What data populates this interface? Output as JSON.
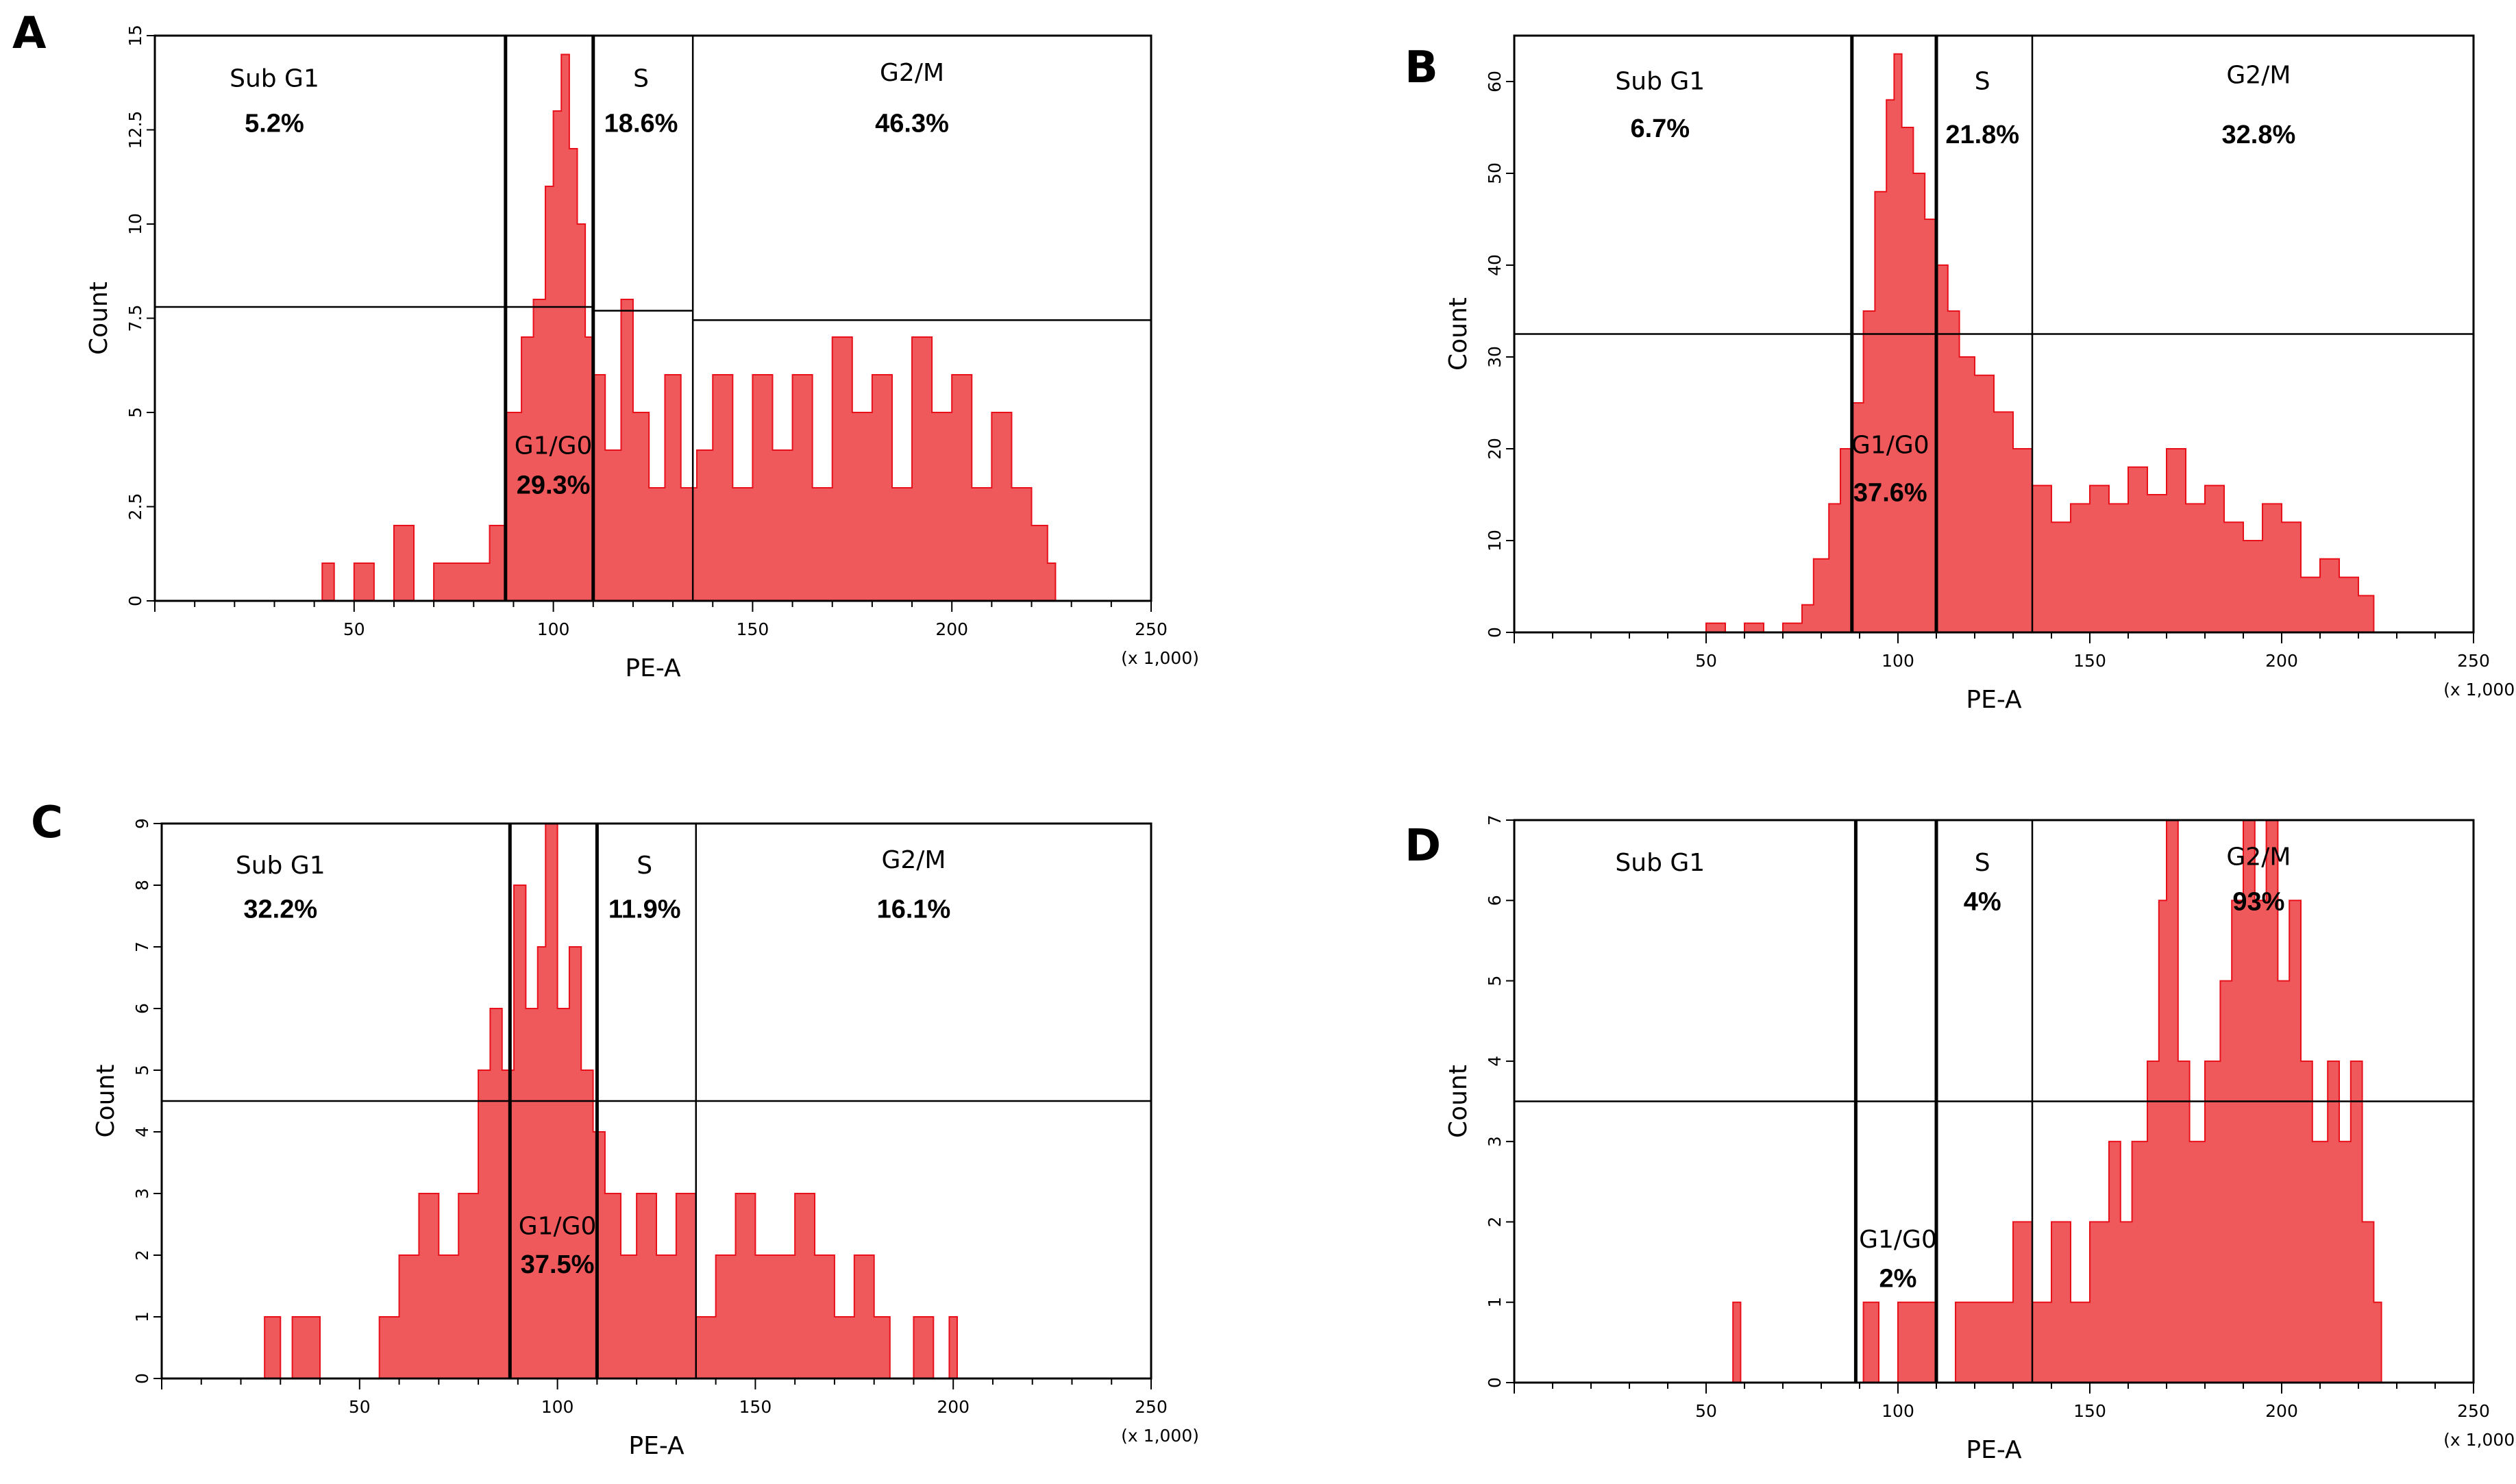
{
  "colors": {
    "histogram_fill": "#f0595c",
    "histogram_stroke": "#e8101a",
    "axis": "#000000",
    "background": "#ffffff"
  },
  "chart_data": [
    {
      "panel": "A",
      "type": "histogram",
      "xlabel": "PE-A",
      "ylabel": "Count",
      "x_units": "(x 1,000)",
      "xlim": [
        0,
        250
      ],
      "x_ticks": [
        "50",
        "100",
        "150",
        "200",
        "250"
      ],
      "ylim": [
        0,
        15
      ],
      "y_ticks": [
        "0",
        "2.5",
        "5",
        "7.5",
        "10",
        "12.5",
        "15"
      ],
      "gate_boundaries": [
        88,
        110,
        135,
        250
      ],
      "quadrant_lines": [
        {
          "from": 0,
          "to": 88,
          "y": 7.8
        },
        {
          "from": 88,
          "to": 110,
          "y": 7.8
        },
        {
          "from": 110,
          "to": 135,
          "y": 7.7
        },
        {
          "from": 135,
          "to": 250,
          "y": 7.45
        }
      ],
      "gates": [
        {
          "name": "Sub G1",
          "percent": "5.2%"
        },
        {
          "name": "G1/G0",
          "percent": "29.3%"
        },
        {
          "name": "S",
          "percent": "18.6%"
        },
        {
          "name": "G2/M",
          "percent": "46.3%"
        }
      ],
      "series": [
        {
          "x": 42,
          "y": 1
        },
        {
          "x": 45,
          "y": 0
        },
        {
          "x": 50,
          "y": 1
        },
        {
          "x": 55,
          "y": 0
        },
        {
          "x": 60,
          "y": 2
        },
        {
          "x": 65,
          "y": 0
        },
        {
          "x": 70,
          "y": 1
        },
        {
          "x": 75,
          "y": 1
        },
        {
          "x": 80,
          "y": 1
        },
        {
          "x": 84,
          "y": 2
        },
        {
          "x": 88,
          "y": 5
        },
        {
          "x": 92,
          "y": 7
        },
        {
          "x": 95,
          "y": 8
        },
        {
          "x": 98,
          "y": 11
        },
        {
          "x": 100,
          "y": 13
        },
        {
          "x": 102,
          "y": 14.5
        },
        {
          "x": 104,
          "y": 12
        },
        {
          "x": 106,
          "y": 10
        },
        {
          "x": 108,
          "y": 7
        },
        {
          "x": 110,
          "y": 6
        },
        {
          "x": 113,
          "y": 4
        },
        {
          "x": 117,
          "y": 8
        },
        {
          "x": 120,
          "y": 5
        },
        {
          "x": 124,
          "y": 3
        },
        {
          "x": 128,
          "y": 6
        },
        {
          "x": 132,
          "y": 3
        },
        {
          "x": 136,
          "y": 4
        },
        {
          "x": 140,
          "y": 6
        },
        {
          "x": 145,
          "y": 3
        },
        {
          "x": 150,
          "y": 6
        },
        {
          "x": 155,
          "y": 4
        },
        {
          "x": 160,
          "y": 6
        },
        {
          "x": 165,
          "y": 3
        },
        {
          "x": 170,
          "y": 7
        },
        {
          "x": 175,
          "y": 5
        },
        {
          "x": 180,
          "y": 6
        },
        {
          "x": 185,
          "y": 3
        },
        {
          "x": 190,
          "y": 7
        },
        {
          "x": 195,
          "y": 5
        },
        {
          "x": 200,
          "y": 6
        },
        {
          "x": 205,
          "y": 3
        },
        {
          "x": 210,
          "y": 5
        },
        {
          "x": 215,
          "y": 3
        },
        {
          "x": 220,
          "y": 2
        },
        {
          "x": 224,
          "y": 1
        },
        {
          "x": 226,
          "y": 0
        }
      ]
    },
    {
      "panel": "B",
      "type": "histogram",
      "xlabel": "PE-A",
      "ylabel": "Count",
      "x_units": "(x 1,000)",
      "xlim": [
        0,
        250
      ],
      "x_ticks": [
        "50",
        "100",
        "150",
        "200",
        "250"
      ],
      "ylim": [
        0,
        65
      ],
      "y_ticks": [
        "0",
        "10",
        "20",
        "30",
        "40",
        "50",
        "60"
      ],
      "gate_boundaries": [
        88,
        110,
        135,
        250
      ],
      "quadrant_lines": [
        {
          "from": 0,
          "to": 250,
          "y": 32.5
        }
      ],
      "gates": [
        {
          "name": "Sub G1",
          "percent": "6.7%"
        },
        {
          "name": "G1/G0",
          "percent": "37.6%"
        },
        {
          "name": "S",
          "percent": "21.8%"
        },
        {
          "name": "G2/M",
          "percent": "32.8%"
        }
      ],
      "series": [
        {
          "x": 50,
          "y": 1
        },
        {
          "x": 55,
          "y": 0
        },
        {
          "x": 60,
          "y": 1
        },
        {
          "x": 65,
          "y": 0
        },
        {
          "x": 70,
          "y": 1
        },
        {
          "x": 75,
          "y": 3
        },
        {
          "x": 78,
          "y": 8
        },
        {
          "x": 82,
          "y": 14
        },
        {
          "x": 85,
          "y": 20
        },
        {
          "x": 88,
          "y": 25
        },
        {
          "x": 91,
          "y": 35
        },
        {
          "x": 94,
          "y": 48
        },
        {
          "x": 97,
          "y": 58
        },
        {
          "x": 99,
          "y": 63
        },
        {
          "x": 101,
          "y": 55
        },
        {
          "x": 104,
          "y": 50
        },
        {
          "x": 107,
          "y": 45
        },
        {
          "x": 110,
          "y": 40
        },
        {
          "x": 113,
          "y": 35
        },
        {
          "x": 116,
          "y": 30
        },
        {
          "x": 120,
          "y": 28
        },
        {
          "x": 125,
          "y": 24
        },
        {
          "x": 130,
          "y": 20
        },
        {
          "x": 135,
          "y": 16
        },
        {
          "x": 140,
          "y": 12
        },
        {
          "x": 145,
          "y": 14
        },
        {
          "x": 150,
          "y": 16
        },
        {
          "x": 155,
          "y": 14
        },
        {
          "x": 160,
          "y": 18
        },
        {
          "x": 165,
          "y": 15
        },
        {
          "x": 170,
          "y": 20
        },
        {
          "x": 175,
          "y": 14
        },
        {
          "x": 180,
          "y": 16
        },
        {
          "x": 185,
          "y": 12
        },
        {
          "x": 190,
          "y": 10
        },
        {
          "x": 195,
          "y": 14
        },
        {
          "x": 200,
          "y": 12
        },
        {
          "x": 205,
          "y": 6
        },
        {
          "x": 210,
          "y": 8
        },
        {
          "x": 215,
          "y": 6
        },
        {
          "x": 220,
          "y": 4
        },
        {
          "x": 224,
          "y": 1
        }
      ]
    },
    {
      "panel": "C",
      "type": "histogram",
      "xlabel": "PE-A",
      "ylabel": "Count",
      "x_units": "(x 1,000)",
      "xlim": [
        0,
        250
      ],
      "x_ticks": [
        "50",
        "100",
        "150",
        "200",
        "250"
      ],
      "ylim": [
        0,
        9
      ],
      "y_ticks": [
        "0",
        "1",
        "2",
        "3",
        "4",
        "5",
        "6",
        "7",
        "8",
        "9"
      ],
      "gate_boundaries": [
        88,
        110,
        135,
        250
      ],
      "quadrant_lines": [
        {
          "from": 0,
          "to": 250,
          "y": 4.5
        }
      ],
      "gates": [
        {
          "name": "Sub G1",
          "percent": "32.2%"
        },
        {
          "name": "G1/G0",
          "percent": "37.5%"
        },
        {
          "name": "S",
          "percent": "11.9%"
        },
        {
          "name": "G2/M",
          "percent": "16.1%"
        }
      ],
      "series": [
        {
          "x": 26,
          "y": 1
        },
        {
          "x": 30,
          "y": 0
        },
        {
          "x": 33,
          "y": 1
        },
        {
          "x": 36,
          "y": 1
        },
        {
          "x": 40,
          "y": 0
        },
        {
          "x": 55,
          "y": 1
        },
        {
          "x": 60,
          "y": 2
        },
        {
          "x": 65,
          "y": 3
        },
        {
          "x": 70,
          "y": 2
        },
        {
          "x": 75,
          "y": 3
        },
        {
          "x": 80,
          "y": 5
        },
        {
          "x": 83,
          "y": 6
        },
        {
          "x": 86,
          "y": 5
        },
        {
          "x": 89,
          "y": 8
        },
        {
          "x": 92,
          "y": 6
        },
        {
          "x": 95,
          "y": 7
        },
        {
          "x": 97,
          "y": 9
        },
        {
          "x": 100,
          "y": 6
        },
        {
          "x": 103,
          "y": 7
        },
        {
          "x": 106,
          "y": 5
        },
        {
          "x": 109,
          "y": 4
        },
        {
          "x": 112,
          "y": 3
        },
        {
          "x": 116,
          "y": 2
        },
        {
          "x": 120,
          "y": 3
        },
        {
          "x": 125,
          "y": 2
        },
        {
          "x": 130,
          "y": 3
        },
        {
          "x": 135,
          "y": 1
        },
        {
          "x": 140,
          "y": 2
        },
        {
          "x": 145,
          "y": 3
        },
        {
          "x": 150,
          "y": 2
        },
        {
          "x": 155,
          "y": 2
        },
        {
          "x": 160,
          "y": 3
        },
        {
          "x": 165,
          "y": 2
        },
        {
          "x": 170,
          "y": 1
        },
        {
          "x": 175,
          "y": 2
        },
        {
          "x": 180,
          "y": 1
        },
        {
          "x": 184,
          "y": 0
        },
        {
          "x": 190,
          "y": 1
        },
        {
          "x": 195,
          "y": 0
        },
        {
          "x": 199,
          "y": 1
        },
        {
          "x": 201,
          "y": 0
        }
      ]
    },
    {
      "panel": "D",
      "type": "histogram",
      "xlabel": "PE-A",
      "ylabel": "Count",
      "x_units": "(x 1,000)",
      "xlim": [
        0,
        250
      ],
      "x_ticks": [
        "50",
        "100",
        "150",
        "200",
        "250"
      ],
      "ylim": [
        0,
        7
      ],
      "y_ticks": [
        "0",
        "1",
        "2",
        "3",
        "4",
        "5",
        "6",
        "7"
      ],
      "gate_boundaries": [
        89,
        110,
        135,
        250
      ],
      "quadrant_lines": [
        {
          "from": 0,
          "to": 250,
          "y": 3.5
        }
      ],
      "gates": [
        {
          "name": "Sub G1",
          "percent": ""
        },
        {
          "name": "G1/G0",
          "percent": "2%"
        },
        {
          "name": "S",
          "percent": "4%"
        },
        {
          "name": "G2/M",
          "percent": "93%"
        }
      ],
      "series": [
        {
          "x": 57,
          "y": 1
        },
        {
          "x": 59,
          "y": 0
        },
        {
          "x": 89,
          "y": 0
        },
        {
          "x": 91,
          "y": 1
        },
        {
          "x": 95,
          "y": 0
        },
        {
          "x": 100,
          "y": 1
        },
        {
          "x": 105,
          "y": 1
        },
        {
          "x": 110,
          "y": 0
        },
        {
          "x": 115,
          "y": 1
        },
        {
          "x": 120,
          "y": 1
        },
        {
          "x": 125,
          "y": 1
        },
        {
          "x": 130,
          "y": 2
        },
        {
          "x": 135,
          "y": 1
        },
        {
          "x": 140,
          "y": 2
        },
        {
          "x": 145,
          "y": 1
        },
        {
          "x": 150,
          "y": 2
        },
        {
          "x": 155,
          "y": 3
        },
        {
          "x": 158,
          "y": 2
        },
        {
          "x": 161,
          "y": 3
        },
        {
          "x": 165,
          "y": 4
        },
        {
          "x": 168,
          "y": 6
        },
        {
          "x": 170,
          "y": 7
        },
        {
          "x": 173,
          "y": 4
        },
        {
          "x": 176,
          "y": 3
        },
        {
          "x": 180,
          "y": 4
        },
        {
          "x": 184,
          "y": 5
        },
        {
          "x": 187,
          "y": 6
        },
        {
          "x": 190,
          "y": 7
        },
        {
          "x": 193,
          "y": 6
        },
        {
          "x": 196,
          "y": 7
        },
        {
          "x": 199,
          "y": 5
        },
        {
          "x": 202,
          "y": 6
        },
        {
          "x": 205,
          "y": 4
        },
        {
          "x": 208,
          "y": 3
        },
        {
          "x": 212,
          "y": 4
        },
        {
          "x": 215,
          "y": 3
        },
        {
          "x": 218,
          "y": 4
        },
        {
          "x": 221,
          "y": 2
        },
        {
          "x": 224,
          "y": 1
        },
        {
          "x": 226,
          "y": 0
        }
      ]
    }
  ]
}
